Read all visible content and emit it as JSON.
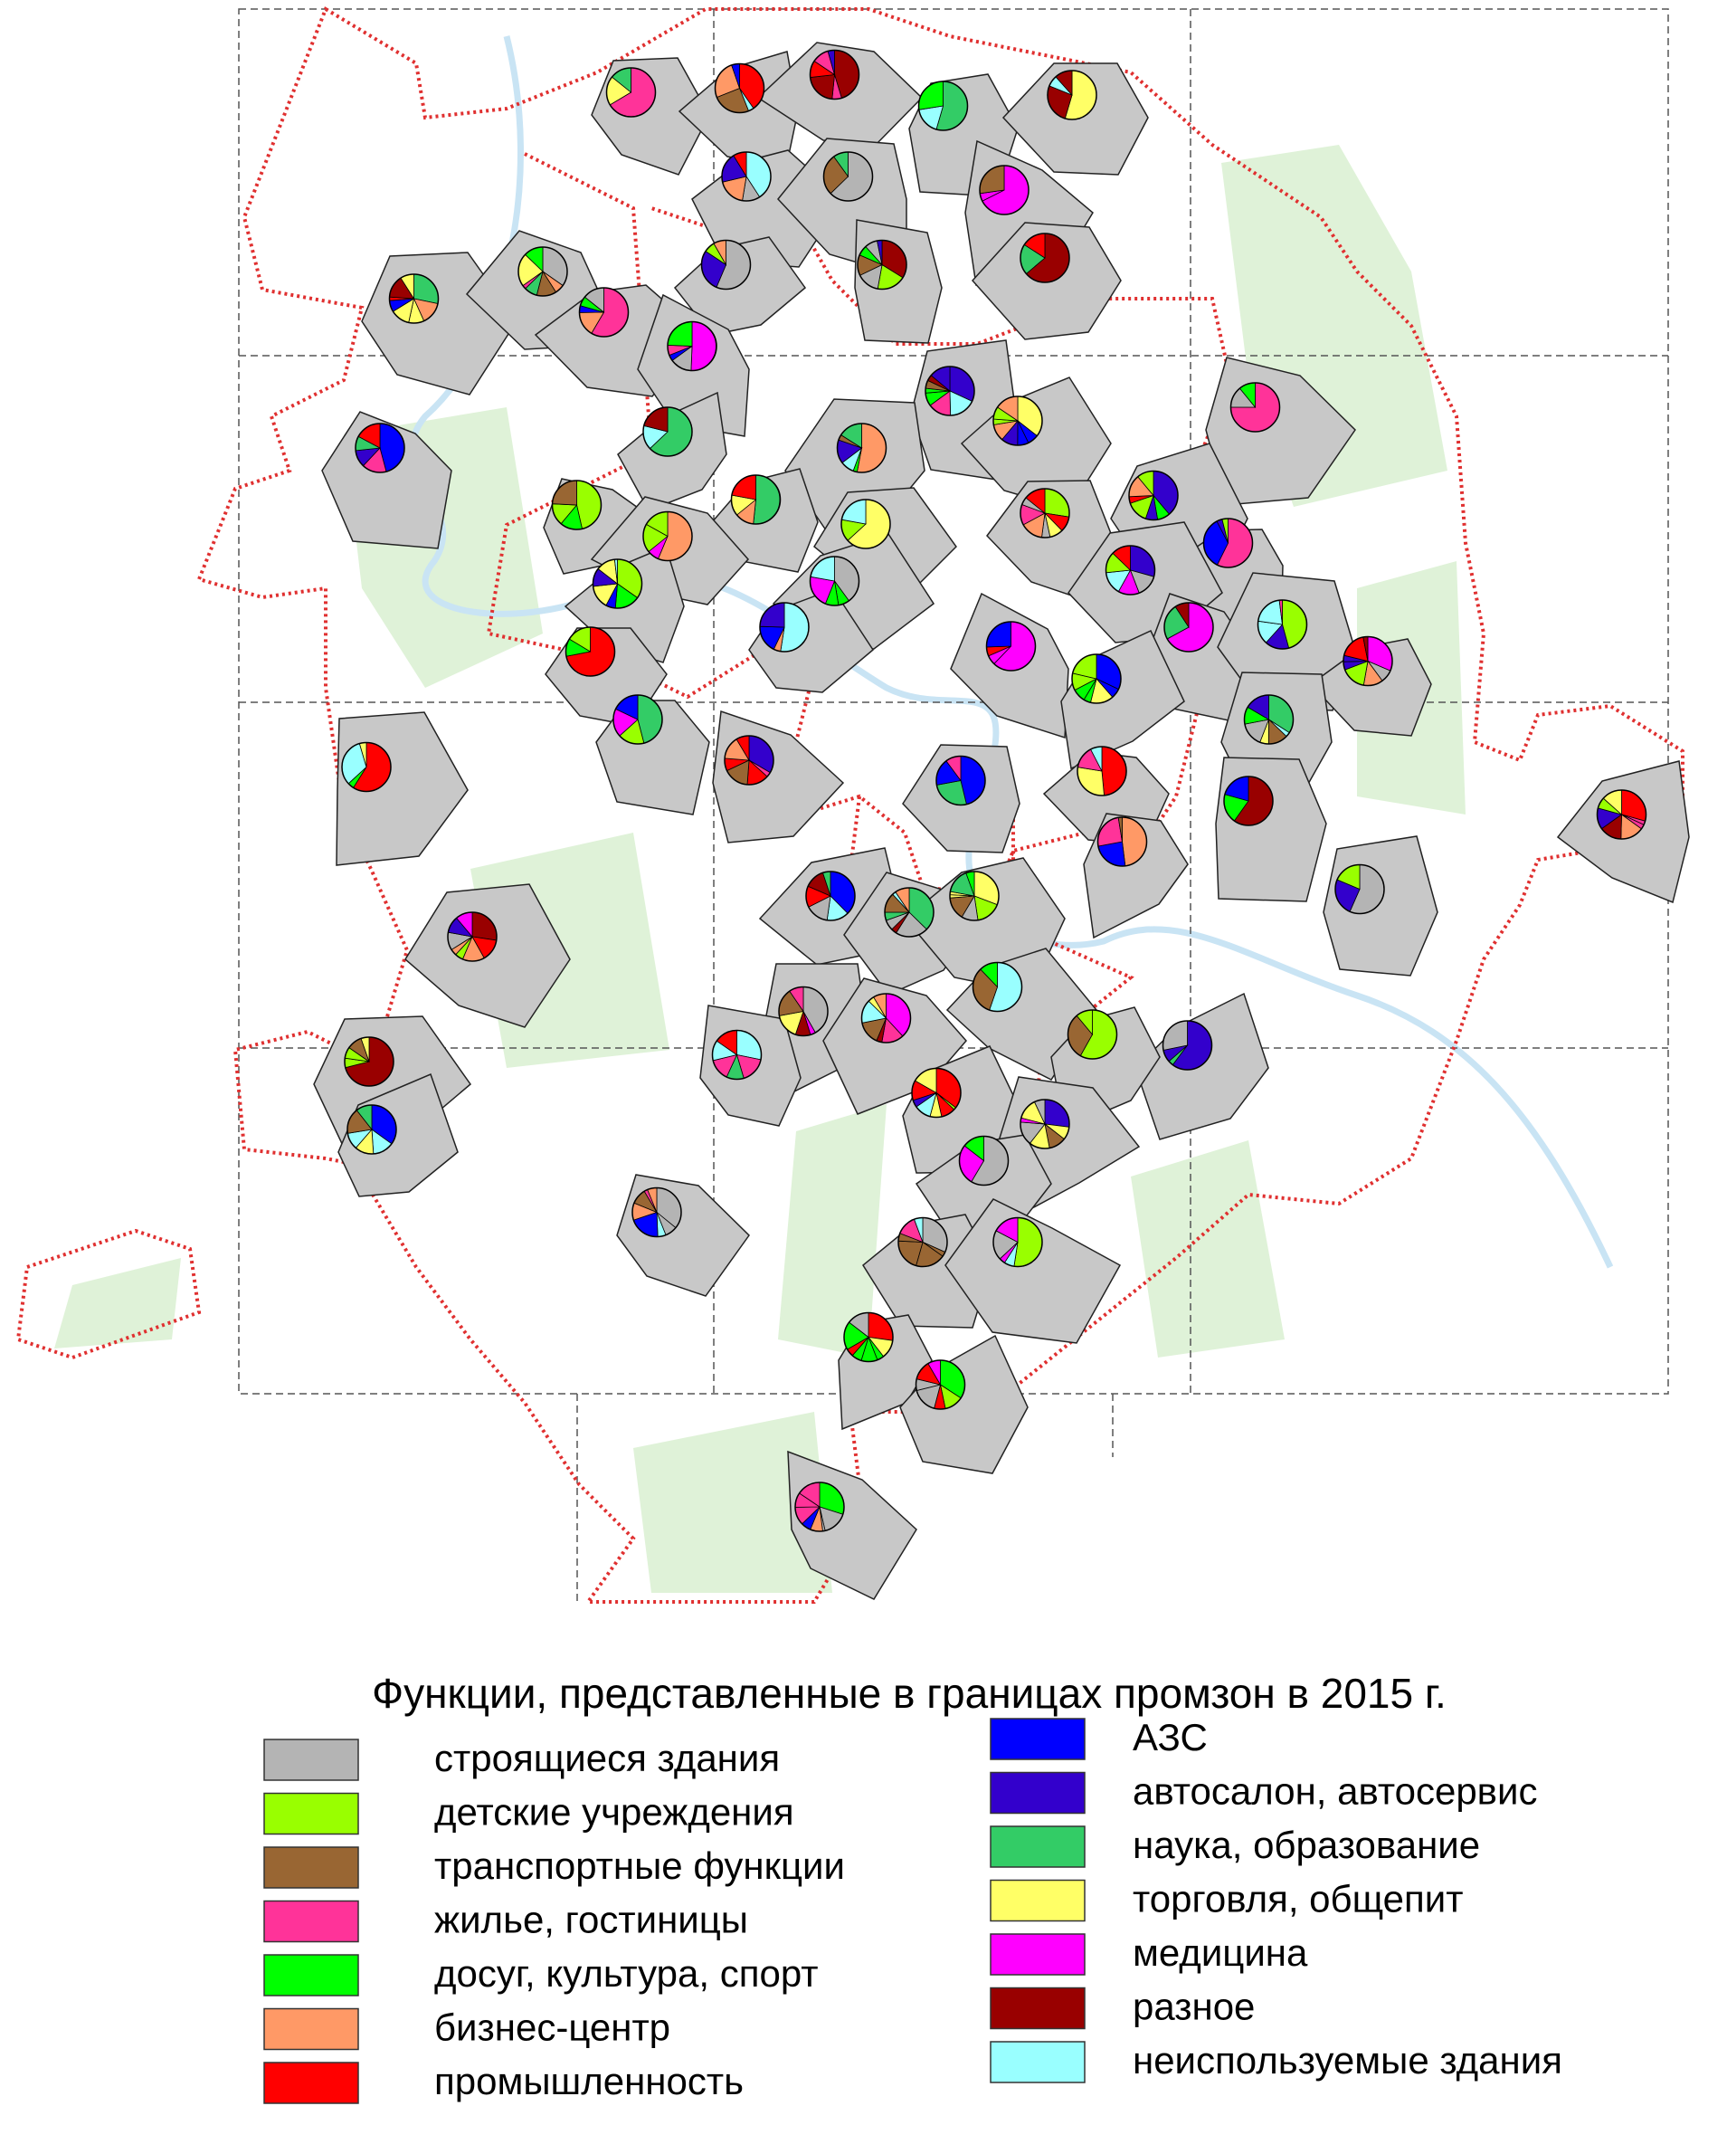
{
  "legend": {
    "title": "Функции, представленные в границах промзон в 2015 г.",
    "items": [
      {
        "label": "строящиеся здания",
        "color": "#b4b4b4"
      },
      {
        "label": "детские учреждения",
        "color": "#99ff00"
      },
      {
        "label": "транспортные функции",
        "color": "#996633"
      },
      {
        "label": "жилье, гостиницы",
        "color": "#ff3399"
      },
      {
        "label": "досуг, культура, спорт",
        "color": "#00ff00"
      },
      {
        "label": "бизнес-центр",
        "color": "#ff9966"
      },
      {
        "label": "промышленность",
        "color": "#ff0000"
      },
      {
        "label": "АЗС",
        "color": "#0000ff"
      },
      {
        "label": "автосалон, автосервис",
        "color": "#3300cc"
      },
      {
        "label": "наука, образование",
        "color": "#33cc66"
      },
      {
        "label": "торговля, общепит",
        "color": "#ffff66"
      },
      {
        "label": "медицина",
        "color": "#ff00ff"
      },
      {
        "label": "разное",
        "color": "#990000"
      },
      {
        "label": "неиспользуемые здания",
        "color": "#99ffff"
      }
    ]
  }
}
